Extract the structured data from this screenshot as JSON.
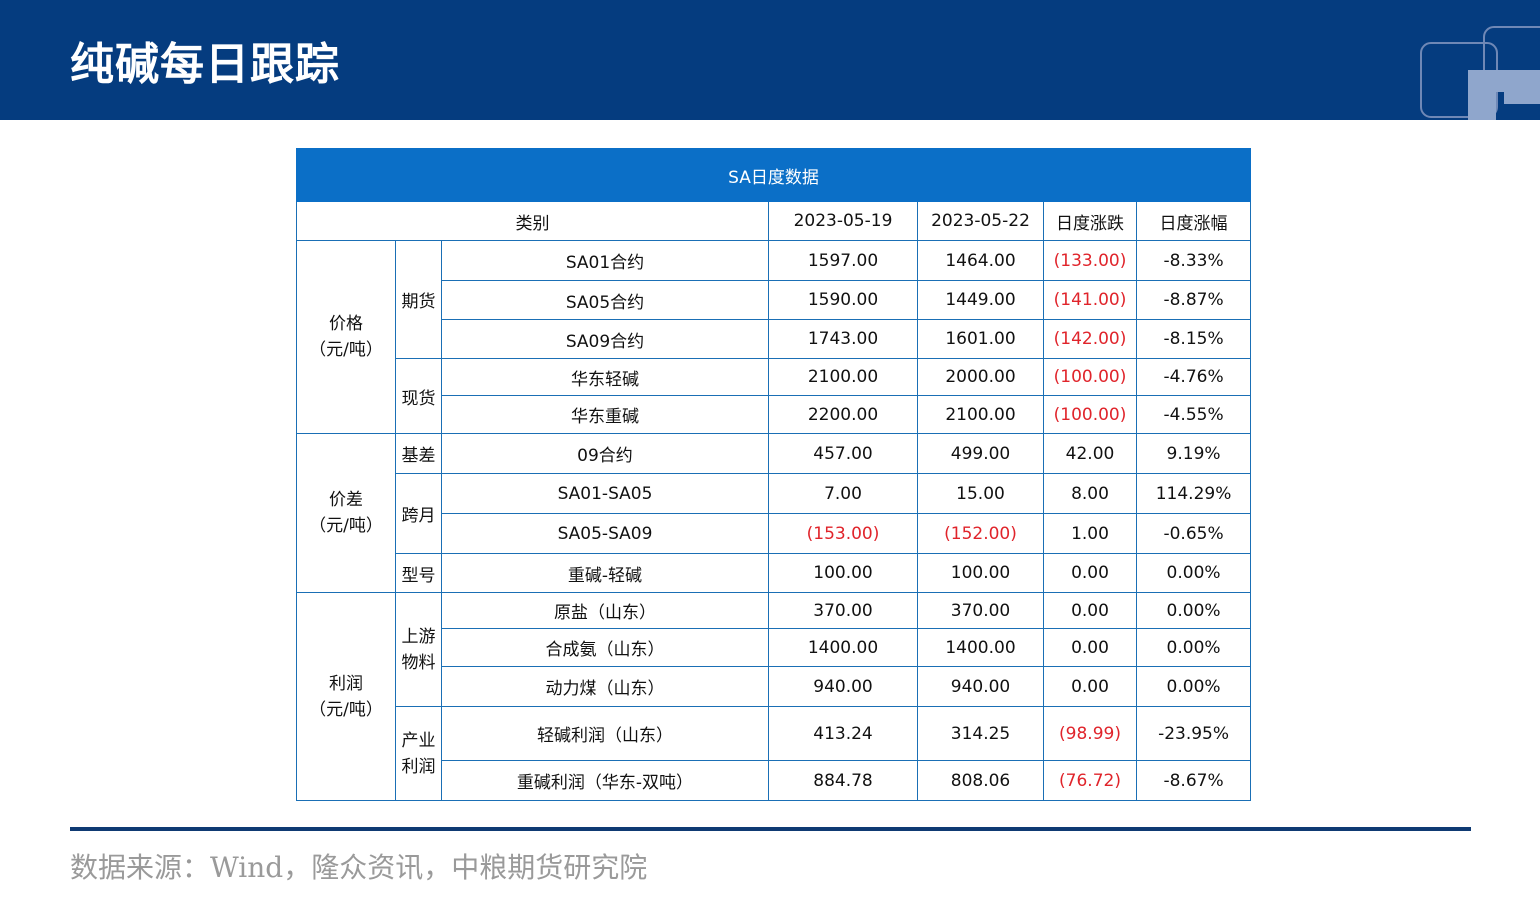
{
  "header": {
    "title": "纯碱每日跟踪"
  },
  "table": {
    "caption": "SA日度数据",
    "headers": [
      "类别",
      "2023-05-19",
      "2023-05-22",
      "日度涨跌",
      "日度涨幅"
    ],
    "groups": {
      "price": "价格\n（元/吨）",
      "spread": "价差\n（元/吨）",
      "profit": "利润\n（元/吨）"
    },
    "subgroups": {
      "futures": "期货",
      "spot": "现货",
      "basis": "基差",
      "calendar": "跨月",
      "grade": "型号",
      "upstream": "上游\n物料",
      "industry": "产业\n利润"
    },
    "rows": [
      {
        "item": "SA01合约",
        "v1": "1597.00",
        "v2": "1464.00",
        "chg": "(133.00)",
        "pct": "-8.33%"
      },
      {
        "item": "SA05合约",
        "v1": "1590.00",
        "v2": "1449.00",
        "chg": "(141.00)",
        "pct": "-8.87%"
      },
      {
        "item": "SA09合约",
        "v1": "1743.00",
        "v2": "1601.00",
        "chg": "(142.00)",
        "pct": "-8.15%"
      },
      {
        "item": "华东轻碱",
        "v1": "2100.00",
        "v2": "2000.00",
        "chg": "(100.00)",
        "pct": "-4.76%"
      },
      {
        "item": "华东重碱",
        "v1": "2200.00",
        "v2": "2100.00",
        "chg": "(100.00)",
        "pct": "-4.55%"
      },
      {
        "item": "09合约",
        "v1": "457.00",
        "v2": "499.00",
        "chg": "42.00",
        "pct": "9.19%"
      },
      {
        "item": "SA01-SA05",
        "v1": "7.00",
        "v2": "15.00",
        "chg": "8.00",
        "pct": "114.29%"
      },
      {
        "item": "SA05-SA09",
        "v1": "(153.00)",
        "v2": "(152.00)",
        "chg": "1.00",
        "pct": "-0.65%"
      },
      {
        "item": "重碱-轻碱",
        "v1": "100.00",
        "v2": "100.00",
        "chg": "0.00",
        "pct": "0.00%"
      },
      {
        "item": "原盐（山东）",
        "v1": "370.00",
        "v2": "370.00",
        "chg": "0.00",
        "pct": "0.00%"
      },
      {
        "item": "合成氨（山东）",
        "v1": "1400.00",
        "v2": "1400.00",
        "chg": "0.00",
        "pct": "0.00%"
      },
      {
        "item": "动力煤（山东）",
        "v1": "940.00",
        "v2": "940.00",
        "chg": "0.00",
        "pct": "0.00%"
      },
      {
        "item": "轻碱利润（山东）",
        "v1": "413.24",
        "v2": "314.25",
        "chg": "(98.99)",
        "pct": "-23.95%"
      },
      {
        "item": "重碱利润（华东-双吨）",
        "v1": "884.78",
        "v2": "808.06",
        "chg": "(76.72)",
        "pct": "-8.67%"
      }
    ]
  },
  "footer": {
    "source": "数据来源：Wind，隆众资讯，中粮期货研究院"
  },
  "colors": {
    "header_bg": "#053c7f",
    "caption_bg": "#0b6fc7",
    "border": "#1a6fb5",
    "negative": "#e0242b",
    "source_text": "#9a9a9a"
  }
}
